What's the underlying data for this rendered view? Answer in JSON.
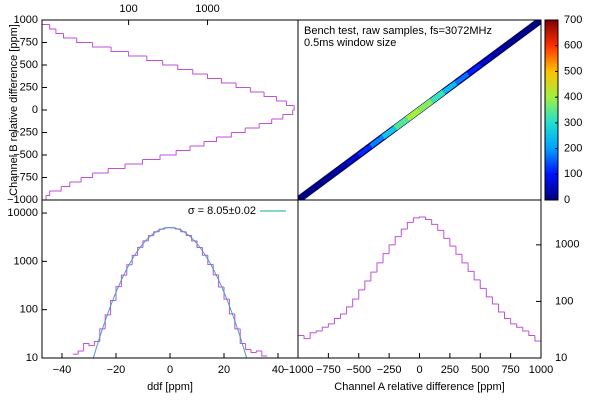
{
  "chart_data": [
    {
      "type": "histogram",
      "orientation": "horizontal",
      "ylabel": "Channel B relative difference [ppm]",
      "bins": [
        -1000,
        -950,
        -900,
        -850,
        -800,
        -750,
        -700,
        -650,
        -600,
        -550,
        -500,
        -450,
        -400,
        -350,
        -300,
        -250,
        -200,
        -150,
        -100,
        -50,
        0,
        50,
        100,
        150,
        200,
        250,
        300,
        350,
        400,
        450,
        500,
        550,
        600,
        650,
        700,
        750,
        800,
        850,
        900,
        950,
        1000
      ],
      "values": [
        9,
        10,
        14,
        18,
        25,
        35,
        55,
        90,
        150,
        250,
        400,
        600,
        900,
        1300,
        2000,
        3000,
        4500,
        6500,
        9000,
        12000,
        12500,
        10000,
        7500,
        5200,
        3500,
        2300,
        1500,
        1000,
        650,
        420,
        270,
        170,
        100,
        60,
        35,
        22,
        15,
        12,
        10,
        8
      ],
      "color": "#c050d8",
      "xlim": [
        8,
        14000
      ],
      "xscale": "log",
      "xticks": [
        100,
        1000
      ],
      "xticks_position": "top",
      "ylim": [
        -1000,
        1000
      ],
      "yticks": [
        {
          "value": -1000,
          "label": "−1000"
        },
        {
          "value": -750,
          "label": "−750"
        },
        {
          "value": -500,
          "label": "−500"
        },
        {
          "value": -250,
          "label": "−250"
        },
        0,
        250,
        500,
        750,
        1000
      ]
    },
    {
      "type": "heatmap",
      "annotations": [
        "Bench test, raw samples, fs=3072MHz",
        "0.5ms window size"
      ],
      "x": [
        -950,
        -850,
        -750,
        -650,
        -550,
        -450,
        -350,
        -250,
        -150,
        -50,
        50,
        150,
        250,
        350,
        450,
        550,
        650,
        750,
        850,
        950
      ],
      "y": [
        -950,
        -850,
        -750,
        -650,
        -550,
        -450,
        -350,
        -250,
        -150,
        -50,
        50,
        150,
        250,
        350,
        450,
        550,
        650,
        750,
        850,
        950
      ],
      "values": [
        5,
        10,
        20,
        40,
        70,
        120,
        180,
        260,
        340,
        400,
        380,
        320,
        240,
        170,
        110,
        65,
        35,
        18,
        9,
        4
      ],
      "xlim": [
        -1000,
        1000
      ],
      "ylim": [
        -1000,
        1000
      ],
      "colormap": [
        "#000080",
        "#0010ff",
        "#00a0ff",
        "#20e0d0",
        "#a0f040",
        "#ffc000",
        "#ff3000",
        "#800000"
      ],
      "clim": [
        0,
        700
      ],
      "cticks": [
        0,
        100,
        200,
        300,
        400,
        500,
        600,
        700
      ]
    },
    {
      "type": "histogram",
      "orientation": "vertical",
      "xlabel": "ddf [ppm]",
      "bins": [
        -36,
        -34,
        -32,
        -30,
        -28,
        -26,
        -24,
        -22,
        -20,
        -18,
        -16,
        -14,
        -12,
        -10,
        -8,
        -6,
        -4,
        -2,
        0,
        2,
        4,
        6,
        8,
        10,
        12,
        14,
        16,
        18,
        20,
        22,
        24,
        26,
        28,
        30,
        32,
        34,
        36
      ],
      "values": [
        12,
        14,
        20,
        18,
        22,
        40,
        78,
        155,
        300,
        520,
        850,
        1330,
        1950,
        2650,
        3400,
        4100,
        4650,
        4950,
        4970,
        4670,
        4100,
        3420,
        2660,
        1940,
        1340,
        860,
        525,
        295,
        165,
        82,
        40,
        20,
        15,
        13,
        14,
        11
      ],
      "color": "#c050d8",
      "fit": {
        "label": "σ = 8.05±0.02",
        "color": "#4a9fc8",
        "amplitude": 5000,
        "sigma": 8.05
      },
      "xlim": [
        -47.4,
        47.4
      ],
      "xticks": [
        {
          "value": -40,
          "label": "−40"
        },
        {
          "value": -20,
          "label": "−20"
        },
        0,
        20,
        40
      ],
      "ylim": [
        10,
        18600
      ],
      "yscale": "log",
      "yticks": [
        10,
        100,
        1000,
        10000
      ]
    },
    {
      "type": "histogram",
      "orientation": "vertical",
      "xlabel": "Channel A relative difference [ppm]",
      "bins": [
        -1000,
        -950,
        -900,
        -850,
        -800,
        -750,
        -700,
        -650,
        -600,
        -550,
        -500,
        -450,
        -400,
        -350,
        -300,
        -250,
        -200,
        -150,
        -100,
        -50,
        0,
        50,
        100,
        150,
        200,
        250,
        300,
        350,
        400,
        450,
        500,
        550,
        600,
        650,
        700,
        750,
        800,
        850,
        900,
        950,
        1000
      ],
      "values": [
        25,
        22,
        28,
        30,
        35,
        40,
        50,
        60,
        80,
        110,
        160,
        230,
        330,
        480,
        700,
        1000,
        1400,
        1900,
        2500,
        3000,
        3100,
        2800,
        2300,
        1800,
        1300,
        950,
        680,
        480,
        340,
        240,
        170,
        120,
        90,
        65,
        50,
        40,
        35,
        30,
        25,
        20
      ],
      "color": "#c050d8",
      "xlim": [
        -1000,
        1000
      ],
      "xticks": [
        {
          "value": -1000,
          "label": "−1000"
        },
        {
          "value": -750,
          "label": "−750"
        },
        {
          "value": -500,
          "label": "−500"
        },
        {
          "value": -250,
          "label": "−250"
        },
        0,
        250,
        500,
        750,
        1000
      ],
      "ylim": [
        10,
        6200
      ],
      "yscale": "log",
      "yticks": [
        10,
        100,
        1000
      ],
      "yticks_position": "right"
    }
  ]
}
